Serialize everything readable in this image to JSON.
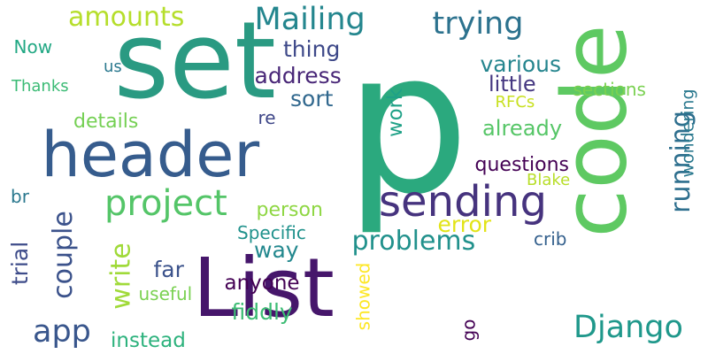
{
  "words": [
    {
      "text": "p",
      "color": "#2ba97e",
      "rotated": false
    },
    {
      "text": "List",
      "color": "#46166b",
      "rotated": false
    },
    {
      "text": "header",
      "color": "#365c8d",
      "rotated": false
    },
    {
      "text": "set",
      "color": "#2a9a82",
      "rotated": false
    },
    {
      "text": "code",
      "color": "#5ec962",
      "rotated": true
    },
    {
      "text": "sending",
      "color": "#46337e",
      "rotated": false
    },
    {
      "text": "Mailing",
      "color": "#24868e",
      "rotated": false
    },
    {
      "text": "trying",
      "color": "#2c728e",
      "rotated": false
    },
    {
      "text": "amounts",
      "color": "#b5de2b",
      "rotated": false
    },
    {
      "text": "project",
      "color": "#54c568",
      "rotated": false
    },
    {
      "text": "problems",
      "color": "#21918c",
      "rotated": false
    },
    {
      "text": "Django",
      "color": "#1f988b",
      "rotated": false
    },
    {
      "text": "running",
      "color": "#2e6f8e",
      "rotated": true
    },
    {
      "text": "couple",
      "color": "#3b528b",
      "rotated": true
    },
    {
      "text": "write",
      "color": "#a0da39",
      "rotated": true
    },
    {
      "text": "app",
      "color": "#39568c",
      "rotated": false
    },
    {
      "text": "questions",
      "color": "#440154",
      "rotated": false
    },
    {
      "text": "thing",
      "color": "#3e4989",
      "rotated": false
    },
    {
      "text": "address",
      "color": "#482677",
      "rotated": false
    },
    {
      "text": "various",
      "color": "#25858e",
      "rotated": false
    },
    {
      "text": "little",
      "color": "#453781",
      "rotated": false
    },
    {
      "text": "sort",
      "color": "#31688e",
      "rotated": false
    },
    {
      "text": "details",
      "color": "#75d054",
      "rotated": false
    },
    {
      "text": "already",
      "color": "#56c667",
      "rotated": false
    },
    {
      "text": "work",
      "color": "#1fa187",
      "rotated": true
    },
    {
      "text": "wondering",
      "color": "#2a788e",
      "rotated": true
    },
    {
      "text": "sections",
      "color": "#7ad151",
      "rotated": false
    },
    {
      "text": "RFCs",
      "color": "#c8e020",
      "rotated": false
    },
    {
      "text": "re",
      "color": "#3f4788",
      "rotated": false
    },
    {
      "text": "Now",
      "color": "#22a884",
      "rotated": false
    },
    {
      "text": "us",
      "color": "#2a788e",
      "rotated": false
    },
    {
      "text": "Thanks",
      "color": "#3bbb75",
      "rotated": false
    },
    {
      "text": "error",
      "color": "#e2e418",
      "rotated": false
    },
    {
      "text": "Blake",
      "color": "#b8de29",
      "rotated": false
    },
    {
      "text": "person",
      "color": "#8fd744",
      "rotated": false
    },
    {
      "text": "way",
      "color": "#23888e",
      "rotated": false
    },
    {
      "text": "crib",
      "color": "#34608d",
      "rotated": false
    },
    {
      "text": "far",
      "color": "#3b528b",
      "rotated": false
    },
    {
      "text": "anyone",
      "color": "#440154",
      "rotated": false
    },
    {
      "text": "fiddly",
      "color": "#3cbc74",
      "rotated": false
    },
    {
      "text": "useful",
      "color": "#7ad151",
      "rotated": false
    },
    {
      "text": "instead",
      "color": "#2db27d",
      "rotated": false
    },
    {
      "text": "Specific",
      "color": "#20928c",
      "rotated": false
    },
    {
      "text": "br",
      "color": "#2a788e",
      "rotated": false
    },
    {
      "text": "trial",
      "color": "#3e4c8a",
      "rotated": true
    },
    {
      "text": "showed",
      "color": "#fde725",
      "rotated": true
    },
    {
      "text": "go",
      "color": "#440154",
      "rotated": true
    }
  ]
}
